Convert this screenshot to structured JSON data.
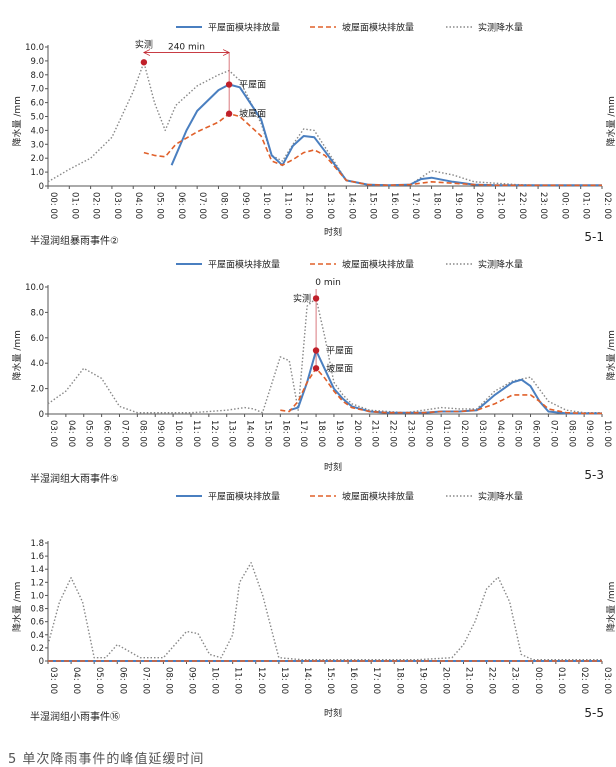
{
  "legend_labels": [
    "平屋面模块排放量",
    "坡屋面模块排放量",
    "实测降水量"
  ],
  "colors": {
    "flat": "#4a7fc0",
    "slope": "#e0602a",
    "rain": "#888888",
    "marker": "#c0202a",
    "axis": "#555555"
  },
  "figure_caption": "5 单次降雨事件的峰值延缓时间",
  "chart_data": [
    {
      "id": "5-1",
      "type": "line",
      "title": "半湿润组暴雨事件②",
      "xlabel": "时刻",
      "ylabel": "降水量 /mm",
      "ylabel_right": "降水量 /mm",
      "ylim": [
        0,
        10
      ],
      "yticks": [
        0,
        1.0,
        2.0,
        3.0,
        4.0,
        5.0,
        6.0,
        7.0,
        8.0,
        9.0,
        10.0
      ],
      "x_ticks": [
        "00: 00",
        "01: 00",
        "02: 00",
        "03: 00",
        "04: 00",
        "05: 00",
        "06: 00",
        "07: 00",
        "08: 00",
        "09: 00",
        "10: 00",
        "11: 00",
        "12: 00",
        "13: 00",
        "14: 00",
        "15: 00",
        "16: 00",
        "17: 00",
        "18: 00",
        "19: 00",
        "20: 00",
        "21: 00",
        "22: 00",
        "23: 00",
        "00: 00",
        "01: 00",
        "02: 00"
      ],
      "series": [
        {
          "key": "rain",
          "name": "实测降水量",
          "x": [
            0,
            1,
            2,
            3,
            4,
            4.5,
            5,
            5.5,
            6,
            7,
            8,
            8.5,
            9,
            10,
            10.5,
            11,
            11.5,
            12,
            12.5,
            13,
            14,
            15,
            16,
            17,
            17.5,
            18,
            19,
            20,
            21,
            22,
            23,
            24,
            25,
            26
          ],
          "values": [
            0.3,
            1.2,
            2.0,
            3.5,
            6.8,
            8.9,
            6.0,
            4.0,
            5.8,
            7.2,
            8.0,
            8.3,
            7.6,
            4.5,
            2.2,
            1.8,
            3.0,
            4.1,
            4.0,
            2.8,
            0.4,
            0.1,
            0.05,
            0.1,
            0.6,
            1.1,
            0.8,
            0.3,
            0.2,
            0.1,
            0.05,
            0.05,
            0.05,
            0.05
          ]
        },
        {
          "key": "flat",
          "name": "平屋面模块排放量",
          "x": [
            5.8,
            6.5,
            7,
            8,
            8.5,
            9,
            10,
            10.5,
            11,
            11.5,
            12,
            12.5,
            13,
            14,
            15,
            16,
            17,
            17.5,
            18,
            19,
            20,
            21,
            22,
            23,
            24,
            25,
            26
          ],
          "values": [
            1.5,
            4.0,
            5.4,
            6.9,
            7.3,
            7.1,
            4.8,
            2.2,
            1.5,
            2.9,
            3.6,
            3.5,
            2.5,
            0.4,
            0.1,
            0.05,
            0.1,
            0.5,
            0.6,
            0.3,
            0.1,
            0.05,
            0.05,
            0.05,
            0.05,
            0.05,
            0.05
          ]
        },
        {
          "key": "slope",
          "name": "坡屋面模块排放量",
          "x": [
            4.5,
            5,
            5.5,
            6,
            7,
            8,
            8.5,
            9,
            10,
            10.5,
            11,
            11.5,
            12,
            12.5,
            13,
            14,
            15,
            16,
            17,
            18,
            19,
            20,
            21,
            22,
            23,
            24,
            25,
            26
          ],
          "values": [
            2.4,
            2.2,
            2.1,
            3.0,
            3.9,
            4.6,
            5.2,
            5.0,
            3.6,
            1.8,
            1.5,
            1.9,
            2.4,
            2.6,
            2.2,
            0.4,
            0.1,
            0.05,
            0.1,
            0.3,
            0.2,
            0.1,
            0.05,
            0.05,
            0.05,
            0.05,
            0.05,
            0.05
          ]
        }
      ],
      "markers": [
        {
          "name": "实测",
          "x": 4.5,
          "y": 8.9,
          "label_side": "top"
        },
        {
          "name": "平屋面",
          "x": 8.5,
          "y": 7.3,
          "label_side": "right"
        },
        {
          "name": "坡屋面",
          "x": 8.5,
          "y": 5.2,
          "label_side": "right"
        }
      ],
      "delay": {
        "label": "240 min",
        "from_x": 4.5,
        "to_x": 8.5,
        "y": 9.6
      }
    },
    {
      "id": "5-3",
      "type": "line",
      "title": "半湿润组大雨事件⑤",
      "xlabel": "时刻",
      "ylabel": "降水量 /mm",
      "ylabel_right": "降水量 /mm",
      "ylim": [
        0,
        10
      ],
      "yticks": [
        0,
        2.0,
        4.0,
        6.0,
        8.0,
        10.0
      ],
      "x_ticks": [
        "03: 00",
        "04: 00",
        "05: 00",
        "06: 00",
        "07: 00",
        "08: 00",
        "09: 00",
        "10: 00",
        "11: 00",
        "12: 00",
        "13: 00",
        "14: 00",
        "15: 00",
        "16: 00",
        "17: 00",
        "18: 00",
        "19: 00",
        "20: 00",
        "21: 00",
        "22: 00",
        "23: 00",
        "00: 00",
        "01: 00",
        "02: 00",
        "03: 00",
        "04: 00",
        "05: 00",
        "06: 00",
        "07: 00",
        "08: 00",
        "09: 00",
        "10: 00"
      ],
      "series": [
        {
          "key": "rain",
          "name": "实测降水量",
          "x": [
            0,
            1,
            2,
            3,
            4,
            5,
            6,
            7,
            8,
            9,
            10,
            11,
            11.5,
            12,
            13,
            13.5,
            14,
            14.5,
            15,
            15.5,
            16,
            16.5,
            17,
            18,
            19,
            20,
            21,
            22,
            23,
            24,
            25,
            26,
            27,
            28,
            29,
            30,
            31
          ],
          "values": [
            0.8,
            1.8,
            3.6,
            2.8,
            0.6,
            0.1,
            0.1,
            0.1,
            0.1,
            0.2,
            0.3,
            0.5,
            0.4,
            0.1,
            4.5,
            4.2,
            0.3,
            8.5,
            9.1,
            6.0,
            2.5,
            1.5,
            0.8,
            0.3,
            0.2,
            0.1,
            0.3,
            0.5,
            0.4,
            0.4,
            1.8,
            2.6,
            2.9,
            1.0,
            0.3,
            0.1,
            0.1
          ]
        },
        {
          "key": "flat",
          "name": "平屋面模块排放量",
          "x": [
            13.5,
            14,
            14.5,
            15,
            15.5,
            16,
            16.5,
            17,
            18,
            19,
            20,
            21,
            22,
            23,
            24,
            25,
            26,
            26.5,
            27,
            27.5,
            28,
            29,
            30,
            31
          ],
          "values": [
            0.3,
            0.5,
            2.5,
            5.0,
            3.5,
            2.0,
            1.2,
            0.6,
            0.2,
            0.1,
            0.1,
            0.1,
            0.2,
            0.2,
            0.3,
            1.5,
            2.5,
            2.7,
            2.2,
            1.0,
            0.2,
            0.05,
            0.05,
            0.05
          ]
        },
        {
          "key": "slope",
          "name": "坡屋面模块排放量",
          "x": [
            13,
            13.5,
            14,
            14.5,
            15,
            15.5,
            16,
            16.5,
            17,
            18,
            19,
            20,
            21,
            22,
            23,
            24,
            25,
            26,
            27,
            27.5,
            28,
            29,
            30,
            31
          ],
          "values": [
            0.3,
            0.2,
            1.0,
            2.5,
            3.6,
            2.8,
            1.8,
            1.0,
            0.5,
            0.2,
            0.1,
            0.1,
            0.1,
            0.2,
            0.2,
            0.3,
            0.8,
            1.5,
            1.5,
            1.0,
            0.4,
            0.1,
            0.05,
            0.05
          ]
        }
      ],
      "markers": [
        {
          "name": "实测",
          "x": 15,
          "y": 9.1,
          "label_side": "left"
        },
        {
          "name": "平屋面",
          "x": 15,
          "y": 5.0,
          "label_side": "right"
        },
        {
          "name": "坡屋面",
          "x": 15,
          "y": 3.6,
          "label_side": "right"
        }
      ],
      "delay": {
        "label": "0 min",
        "from_x": 15,
        "to_x": 15,
        "y": 10.0
      }
    },
    {
      "id": "5-5",
      "type": "line",
      "title": "半湿润组小雨事件⑯",
      "xlabel": "时刻",
      "ylabel": "降水量 /mm",
      "ylabel_right": "降水量 /mm",
      "ylim": [
        0,
        1.8
      ],
      "yticks": [
        0,
        0.2,
        0.4,
        0.6,
        0.8,
        1.0,
        1.2,
        1.4,
        1.6,
        1.8
      ],
      "x_ticks": [
        "03: 00",
        "04: 00",
        "05: 00",
        "06: 00",
        "07: 00",
        "08: 00",
        "09: 00",
        "10: 00",
        "11: 00",
        "12: 00",
        "13: 00",
        "14: 00",
        "15: 00",
        "16: 00",
        "17: 00",
        "18: 00",
        "19: 00",
        "20: 00",
        "21: 00",
        "22: 00",
        "23: 00",
        "00: 00",
        "01: 00",
        "02: 00",
        "03: 00"
      ],
      "series": [
        {
          "key": "rain",
          "name": "实测降水量",
          "x": [
            0,
            0.5,
            1,
            1.5,
            2,
            2.5,
            3,
            3.5,
            4,
            4.5,
            5,
            6,
            6.5,
            7,
            7.5,
            8,
            8.3,
            8.8,
            9.3,
            10,
            11,
            12,
            13,
            14,
            15,
            16,
            17.5,
            18,
            18.5,
            19,
            19.5,
            20,
            20.5,
            21,
            22,
            23,
            24
          ],
          "values": [
            0.25,
            0.9,
            1.27,
            0.9,
            0.05,
            0.05,
            0.25,
            0.15,
            0.05,
            0.05,
            0.05,
            0.45,
            0.42,
            0.1,
            0.05,
            0.4,
            1.2,
            1.5,
            1.0,
            0.05,
            0.02,
            0.02,
            0.02,
            0.02,
            0.02,
            0.02,
            0.05,
            0.25,
            0.6,
            1.1,
            1.28,
            0.9,
            0.1,
            0.02,
            0.02,
            0.02,
            0.02
          ]
        },
        {
          "key": "flat",
          "name": "平屋面模块排放量",
          "x": [
            0,
            24
          ],
          "values": [
            0.0,
            0.0
          ]
        },
        {
          "key": "slope",
          "name": "坡屋面模块排放量",
          "x": [
            0,
            24
          ],
          "values": [
            0.0,
            0.0
          ]
        }
      ],
      "markers": [],
      "delay": null
    }
  ]
}
